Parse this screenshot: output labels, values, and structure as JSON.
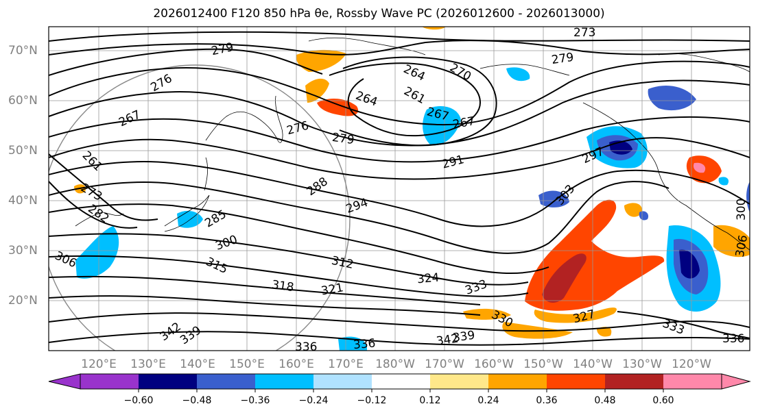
{
  "title": "2026012400 F120 850 hPa θe, Rossby Wave PC (2026012600 - 2026013000)",
  "map": {
    "projection": "PlateCarree",
    "lon_range_deg_east": [
      108,
      250
    ],
    "lat_range": [
      10,
      75
    ],
    "lat_labels": [
      "70°N",
      "60°N",
      "50°N",
      "40°N",
      "30°N",
      "20°N"
    ],
    "lon_labels": [
      "120°E",
      "130°E",
      "140°E",
      "150°E",
      "160°E",
      "170°E",
      "180°W",
      "170°W",
      "160°W",
      "150°W",
      "140°W",
      "130°W",
      "120°W"
    ],
    "contour_field": "850 hPa θe (K)",
    "contour_labels": [
      "273",
      "279",
      "279",
      "276",
      "267",
      "264",
      "261",
      "267",
      "270",
      "264",
      "267",
      "276",
      "279",
      "291",
      "297",
      "288",
      "294",
      "303",
      "261",
      "273",
      "282",
      "285",
      "300",
      "312",
      "315",
      "306",
      "318",
      "321",
      "324",
      "333",
      "336",
      "342",
      "339",
      "330",
      "327",
      "333",
      "336",
      "336",
      "342",
      "339",
      "300",
      "306"
    ]
  },
  "colorbar": {
    "tick_labels": [
      "−0.60",
      "−0.48",
      "−0.36",
      "−0.24",
      "−0.12",
      "0.12",
      "0.24",
      "0.36",
      "0.48",
      "0.60"
    ],
    "colors": [
      "#9933cc",
      "#000080",
      "#3a5fcd",
      "#00bfff",
      "#b0e2ff",
      "#ffffff",
      "#ffe88a",
      "#ffa500",
      "#ff4500",
      "#b22222",
      "#ff88aa"
    ]
  }
}
